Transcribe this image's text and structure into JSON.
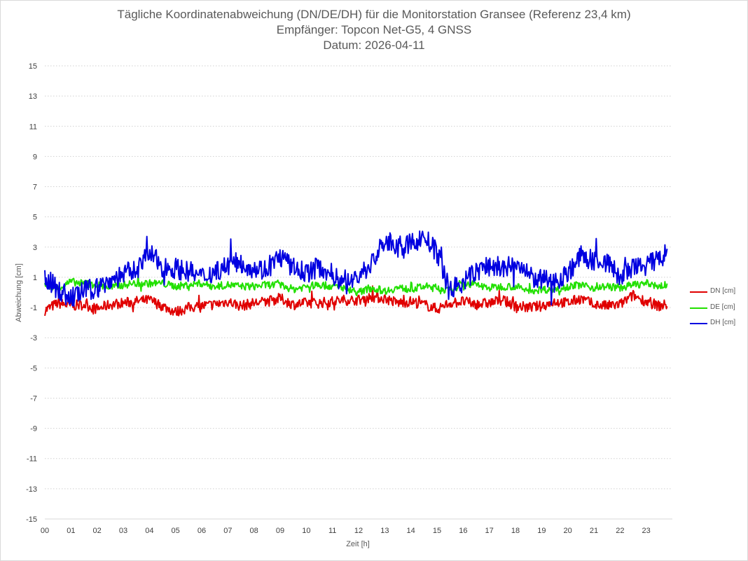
{
  "chart": {
    "title_lines": [
      "Tägliche Koordinatenabweichung (DN/DE/DH) für die Monitorstation Gransee (Referenz 23,4 km)",
      "Empfänger: Topcon Net-G5, 4 GNSS",
      "Datum: 2026-04-11"
    ]
  },
  "chart_data": {
    "type": "line",
    "title": "Tägliche Koordinatenabweichung (DN/DE/DH) für die Monitorstation Gransee (Referenz 23,4 km)",
    "subtitle": [
      "Empfänger: Topcon Net-G5, 4 GNSS",
      "Datum: 2026-04-11"
    ],
    "xlabel": "Zeit [h]",
    "ylabel": "Abweichung [cm]",
    "x_ticks": [
      "00",
      "01",
      "02",
      "03",
      "04",
      "05",
      "06",
      "07",
      "08",
      "09",
      "10",
      "11",
      "12",
      "13",
      "14",
      "15",
      "16",
      "17",
      "18",
      "19",
      "20",
      "21",
      "22",
      "23"
    ],
    "xlim": [
      0,
      24
    ],
    "y_ticks": [
      15,
      13,
      11,
      9,
      7,
      5,
      3,
      1,
      -1,
      -3,
      -5,
      -7,
      -9,
      -11,
      -13,
      -15
    ],
    "ylim": [
      -15,
      15
    ],
    "grid": "horizontal dotted",
    "legend": "right",
    "x_hours": [
      0,
      0.5,
      1,
      1.5,
      2,
      2.5,
      3,
      3.5,
      4,
      4.5,
      5,
      5.5,
      6,
      6.5,
      7,
      7.5,
      8,
      8.5,
      9,
      9.5,
      10,
      10.5,
      11,
      11.5,
      12,
      12.5,
      13,
      13.5,
      14,
      14.5,
      15,
      15.5,
      16,
      16.5,
      17,
      17.5,
      18,
      18.5,
      19,
      19.5,
      20,
      20.5,
      21,
      21.5,
      22,
      22.5,
      23,
      23.5,
      23.8
    ],
    "series": [
      {
        "name": "DN [cm]",
        "color": "#e00000",
        "values": [
          -1.2,
          -0.7,
          -0.9,
          -0.8,
          -1.1,
          -0.8,
          -0.7,
          -0.6,
          -0.5,
          -0.9,
          -1.3,
          -1.0,
          -0.9,
          -0.8,
          -0.6,
          -0.9,
          -0.7,
          -0.6,
          -0.4,
          -0.8,
          -0.7,
          -0.7,
          -0.6,
          -0.5,
          -0.5,
          -0.3,
          -0.4,
          -0.7,
          -0.6,
          -0.8,
          -1.1,
          -0.7,
          -0.6,
          -0.8,
          -0.7,
          -0.5,
          -0.9,
          -1.0,
          -0.9,
          -0.6,
          -0.7,
          -0.4,
          -0.8,
          -0.9,
          -0.8,
          -0.2,
          -0.6,
          -0.9,
          -0.8
        ]
      },
      {
        "name": "DE [cm]",
        "color": "#22e000",
        "values": [
          0.5,
          0.3,
          0.7,
          0.6,
          0.5,
          0.3,
          0.5,
          0.6,
          0.6,
          0.6,
          0.4,
          0.5,
          0.6,
          0.4,
          0.5,
          0.4,
          0.4,
          0.5,
          0.5,
          0.2,
          0.4,
          0.5,
          0.4,
          0.3,
          0.0,
          0.3,
          0.1,
          0.3,
          0.2,
          0.4,
          0.3,
          0.1,
          0.6,
          0.5,
          0.3,
          0.4,
          0.4,
          0.1,
          0.2,
          0.2,
          0.4,
          0.5,
          0.3,
          0.4,
          0.3,
          0.5,
          0.6,
          0.4,
          0.5
        ]
      },
      {
        "name": "DH [cm]",
        "color": "#0000e0",
        "values": [
          1.0,
          0.2,
          -0.4,
          0.1,
          0.3,
          0.8,
          1.2,
          1.5,
          2.6,
          1.7,
          1.6,
          1.4,
          1.0,
          1.4,
          1.8,
          2.0,
          1.6,
          1.5,
          2.4,
          1.6,
          1.3,
          1.7,
          1.2,
          0.5,
          1.1,
          1.9,
          3.4,
          3.0,
          3.2,
          3.7,
          2.6,
          0.2,
          0.6,
          1.4,
          1.8,
          1.5,
          1.9,
          1.1,
          0.8,
          0.7,
          1.3,
          2.4,
          2.1,
          2.0,
          1.0,
          1.6,
          1.8,
          2.2,
          2.6
        ]
      }
    ]
  }
}
